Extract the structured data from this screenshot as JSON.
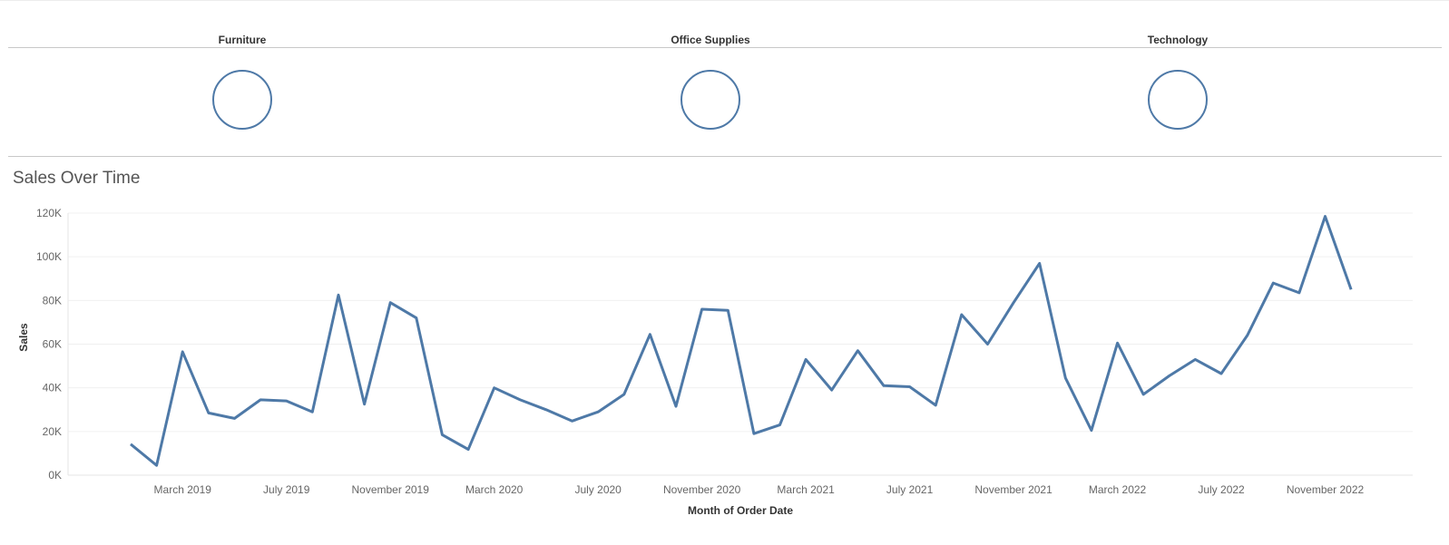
{
  "categories": {
    "items": [
      {
        "label": "Furniture"
      },
      {
        "label": "Office Supplies"
      },
      {
        "label": "Technology"
      }
    ],
    "mark_color": "#4e79a7"
  },
  "chart_data": {
    "type": "line",
    "title": "Sales Over Time",
    "xlabel": "Month of Order Date",
    "ylabel": "Sales",
    "ylim": [
      0,
      120000
    ],
    "y_ticks": [
      "0K",
      "20K",
      "40K",
      "60K",
      "80K",
      "100K",
      "120K"
    ],
    "x_ticks": [
      "March 2019",
      "July 2019",
      "November 2019",
      "March 2020",
      "July 2020",
      "November 2020",
      "March 2021",
      "July 2021",
      "November 2021",
      "March 2022",
      "July 2022",
      "November 2022"
    ],
    "grid": true,
    "line_color": "#4e79a7",
    "x": [
      "2019-01",
      "2019-02",
      "2019-03",
      "2019-04",
      "2019-05",
      "2019-06",
      "2019-07",
      "2019-08",
      "2019-09",
      "2019-10",
      "2019-11",
      "2019-12",
      "2020-01",
      "2020-02",
      "2020-03",
      "2020-04",
      "2020-05",
      "2020-06",
      "2020-07",
      "2020-08",
      "2020-09",
      "2020-10",
      "2020-11",
      "2020-12",
      "2021-01",
      "2021-02",
      "2021-03",
      "2021-04",
      "2021-05",
      "2021-06",
      "2021-07",
      "2021-08",
      "2021-09",
      "2021-10",
      "2021-11",
      "2021-12",
      "2022-01",
      "2022-02",
      "2022-03",
      "2022-04",
      "2022-05",
      "2022-06",
      "2022-07",
      "2022-08",
      "2022-09",
      "2022-10",
      "2022-11",
      "2022-12"
    ],
    "values": [
      14200,
      4500,
      56500,
      28500,
      26000,
      34500,
      34000,
      29000,
      82500,
      32500,
      79000,
      72000,
      18500,
      11800,
      40000,
      34500,
      30000,
      24800,
      29000,
      37000,
      64500,
      31500,
      76000,
      75500,
      19000,
      23000,
      53000,
      39000,
      57000,
      41000,
      40500,
      32000,
      73500,
      60000,
      79000,
      97000,
      44500,
      20500,
      60500,
      37000,
      45500,
      53000,
      46500,
      64000,
      88000,
      83500,
      118500,
      85000
    ]
  }
}
